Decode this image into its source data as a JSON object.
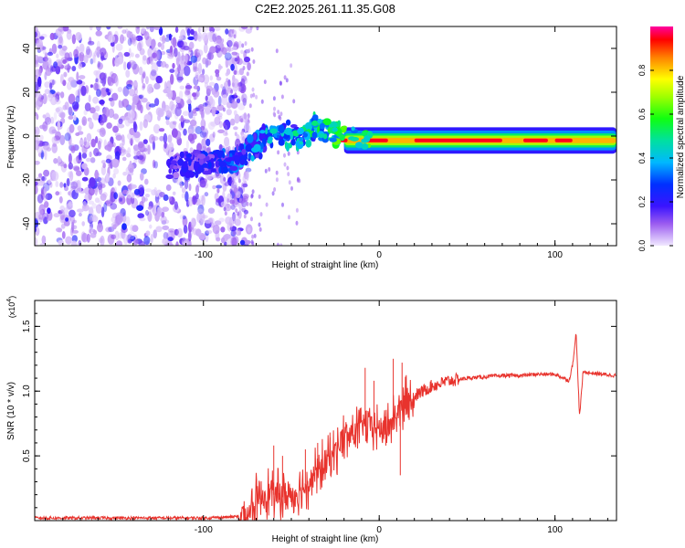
{
  "title": "C2E2.2025.261.11.35.G08",
  "chart_data": [
    {
      "type": "heatmap",
      "xlabel": "Height of straight line (km)",
      "ylabel": "Frequency (Hz)",
      "xlim": [
        -196,
        135
      ],
      "ylim": [
        -50,
        50
      ],
      "xticks": [
        -100,
        0,
        100
      ],
      "xtick_labels": [
        "-100",
        "0",
        "100"
      ],
      "yticks": [
        -40,
        -20,
        0,
        20,
        40
      ],
      "ytick_labels": [
        "-40",
        "-20",
        "0",
        "20",
        "40"
      ],
      "colorbar": {
        "label": "Normalized spectral amplitude",
        "range": [
          0,
          1
        ],
        "ticks": [
          0.0,
          0.2,
          0.4,
          0.6,
          0.8
        ],
        "tick_labels": [
          "0.0",
          "0.2",
          "0.4",
          "0.6",
          "0.8"
        ]
      },
      "regions": [
        {
          "x_from": -196,
          "x_to": -80,
          "description": "broadband scattered noise",
          "max_amplitude": 0.25
        },
        {
          "x_from": -120,
          "x_to": -20,
          "description": "emerging tone near 0 Hz",
          "max_amplitude": 0.5
        },
        {
          "x_from": -20,
          "x_to": 135,
          "description": "strong narrow line at about -2 Hz",
          "max_amplitude": 0.95
        }
      ],
      "tone_track": [
        {
          "x": -120,
          "f": -14
        },
        {
          "x": -100,
          "f": -12
        },
        {
          "x": -80,
          "f": -10
        },
        {
          "x": -70,
          "f": -4
        },
        {
          "x": -60,
          "f": 2
        },
        {
          "x": -45,
          "f": 0
        },
        {
          "x": -35,
          "f": 4
        },
        {
          "x": -20,
          "f": 0
        },
        {
          "x": 0,
          "f": -2
        },
        {
          "x": 50,
          "f": -2
        },
        {
          "x": 90,
          "f": -3
        },
        {
          "x": 135,
          "f": -2
        }
      ]
    },
    {
      "type": "line",
      "xlabel": "Height of straight line (km)",
      "ylabel": "SNR (10 * v/v)",
      "scale_label": "(x10",
      "scale_exponent": "4",
      "y_unit_multiplier": 10000,
      "xlim": [
        -196,
        135
      ],
      "ylim": [
        0,
        1.7
      ],
      "xticks": [
        -100,
        0,
        100
      ],
      "xtick_labels": [
        "-100",
        "0",
        "100"
      ],
      "yticks": [
        0.5,
        1.0,
        1.5
      ],
      "ytick_labels": [
        "0.5",
        "1.0",
        "1.5"
      ],
      "series": [
        {
          "name": "SNR",
          "color": "#e8332d",
          "x": [
            -196,
            -150,
            -100,
            -80,
            -75,
            -70,
            -65,
            -60,
            -55,
            -50,
            -45,
            -40,
            -35,
            -30,
            -25,
            -20,
            -15,
            -10,
            -5,
            0,
            5,
            10,
            15,
            20,
            30,
            40,
            50,
            60,
            70,
            80,
            90,
            100,
            105,
            108,
            110,
            112,
            114,
            116,
            120,
            135
          ],
          "y": [
            0.02,
            0.02,
            0.02,
            0.03,
            0.06,
            0.14,
            0.22,
            0.2,
            0.18,
            0.2,
            0.24,
            0.3,
            0.38,
            0.45,
            0.55,
            0.62,
            0.68,
            0.72,
            0.75,
            0.7,
            0.72,
            0.82,
            0.9,
            0.96,
            1.04,
            1.08,
            1.1,
            1.11,
            1.12,
            1.12,
            1.13,
            1.13,
            1.1,
            1.08,
            1.2,
            1.45,
            0.8,
            1.15,
            1.14,
            1.12
          ]
        }
      ],
      "spikes": [
        {
          "x": -60,
          "y": 0.58
        },
        {
          "x": -55,
          "y": 0.5
        },
        {
          "x": -42,
          "y": 0.55
        },
        {
          "x": -35,
          "y": 0.6
        },
        {
          "x": -28,
          "y": 0.68
        },
        {
          "x": -15,
          "y": 0.75
        },
        {
          "x": -8,
          "y": 1.18
        },
        {
          "x": -3,
          "y": 1.08
        },
        {
          "x": 8,
          "y": 1.25
        },
        {
          "x": 13,
          "y": 1.22
        },
        {
          "x": 12,
          "y": 0.35
        }
      ]
    }
  ]
}
